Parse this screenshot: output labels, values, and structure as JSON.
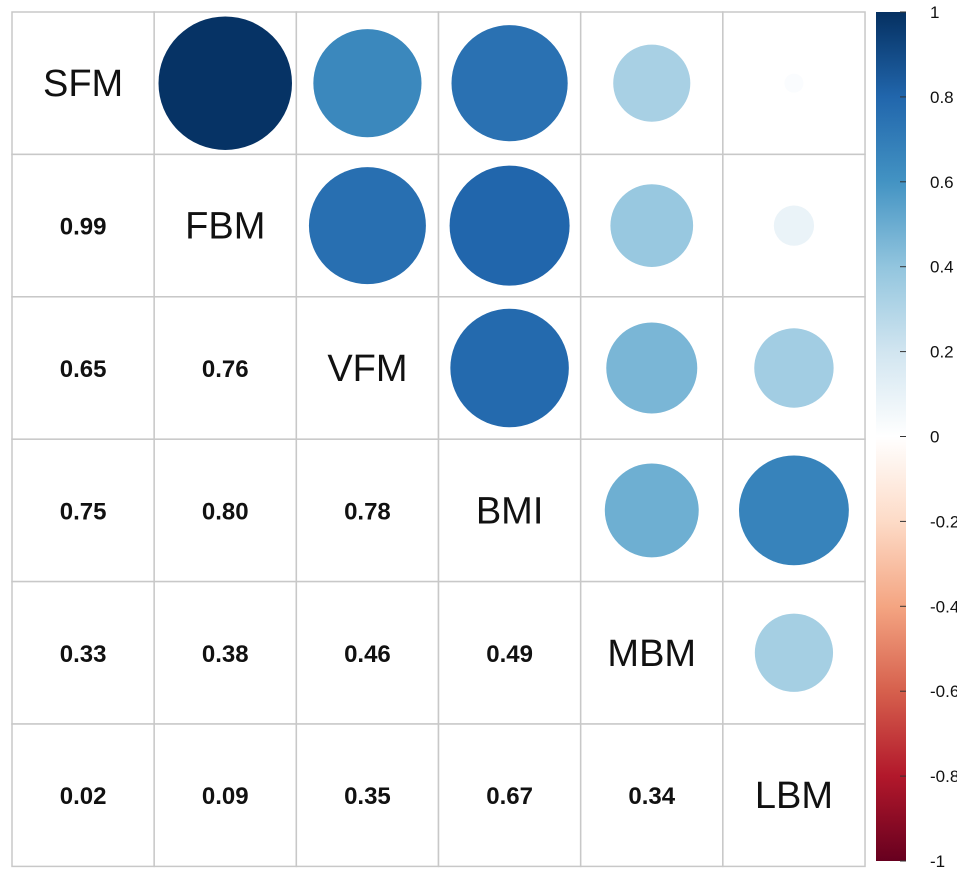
{
  "chart_data": {
    "type": "heatmap",
    "style": "correlation-matrix (mixed: upper circles, lower numbers)",
    "variables": [
      "SFM",
      "FBM",
      "VFM",
      "BMI",
      "MBM",
      "LBM"
    ],
    "matrix": [
      [
        1.0,
        0.99,
        0.65,
        0.75,
        0.33,
        0.02
      ],
      [
        0.99,
        1.0,
        0.76,
        0.8,
        0.38,
        0.09
      ],
      [
        0.65,
        0.76,
        1.0,
        0.78,
        0.46,
        0.35
      ],
      [
        0.75,
        0.8,
        0.78,
        1.0,
        0.49,
        0.67
      ],
      [
        0.33,
        0.38,
        0.46,
        0.49,
        1.0,
        0.34
      ],
      [
        0.02,
        0.09,
        0.35,
        0.67,
        0.34,
        1.0
      ]
    ],
    "lower_labels": [
      [
        "0.99"
      ],
      [
        "0.65",
        "0.76"
      ],
      [
        "0.75",
        "0.80",
        "0.78"
      ],
      [
        "0.33",
        "0.38",
        "0.46",
        "0.49"
      ],
      [
        "0.02",
        "0.09",
        "0.35",
        "0.67",
        "0.34"
      ]
    ],
    "colorbar": {
      "range": [
        -1,
        1
      ],
      "ticks": [
        "1",
        "0.8",
        "0.6",
        "0.4",
        "0.2",
        "0",
        "-0.2",
        "-0.4",
        "-0.6",
        "-0.8",
        "-1"
      ],
      "colors": [
        "#67001f",
        "#b2182b",
        "#d6604d",
        "#f4a582",
        "#fddbc7",
        "#ffffff",
        "#d1e5f0",
        "#92c5de",
        "#4393c3",
        "#2166ac",
        "#053061"
      ]
    },
    "upper_display": "circles sized and colored by correlation",
    "grid": true
  }
}
